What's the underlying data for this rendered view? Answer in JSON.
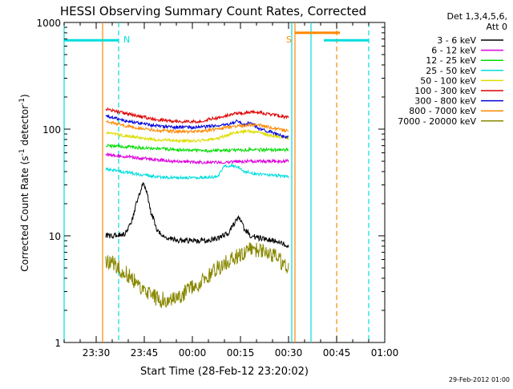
{
  "chart_data": {
    "type": "line",
    "title": "HESSI Observing Summary Count Rates, Corrected",
    "xlabel": "Start Time (28-Feb-12 23:20:02)",
    "ylabel_main": "Corrected Count Rate (s",
    "ylabel_sup1": "-1",
    "ylabel_mid": " detector",
    "ylabel_sup2": "-1",
    "ylabel_end": ")",
    "y_scale": "log",
    "ylim": [
      1,
      1000
    ],
    "xlim_minutes": [
      0,
      100
    ],
    "x_ticks": [
      {
        "t": 10,
        "label": "23:30"
      },
      {
        "t": 25,
        "label": "23:45"
      },
      {
        "t": 40,
        "label": "00:00"
      },
      {
        "t": 55,
        "label": "00:15"
      },
      {
        "t": 70,
        "label": "00:30"
      },
      {
        "t": 85,
        "label": "00:45"
      },
      {
        "t": 100,
        "label": "01:00"
      }
    ],
    "y_ticks": [
      {
        "v": 1,
        "label": "1"
      },
      {
        "v": 10,
        "label": "10"
      },
      {
        "v": 100,
        "label": "100"
      },
      {
        "v": 1000,
        "label": "1000"
      }
    ],
    "legend": {
      "header_line1": "Det 1,3,4,5,6,",
      "header_line2": "Att 0",
      "placement": "right"
    },
    "series": [
      {
        "name": "3 - 6 keV",
        "color": "#000000",
        "x": [
          13,
          16,
          19,
          21,
          23,
          24.5,
          25.5,
          27,
          29,
          32,
          36,
          40,
          44,
          48,
          51,
          53,
          54.5,
          56,
          58,
          61,
          65,
          68,
          70
        ],
        "values": [
          10,
          10,
          10.5,
          13,
          22,
          31,
          27,
          17,
          11,
          9.5,
          9,
          9,
          9,
          9.5,
          10.5,
          13,
          15,
          12,
          10,
          9.5,
          9,
          8.5,
          8
        ]
      },
      {
        "name": "6 - 12 keV",
        "color": "#dd00dd",
        "x": [
          13,
          20,
          28,
          35,
          42,
          50,
          56,
          62,
          70
        ],
        "values": [
          58,
          55,
          52,
          50,
          49,
          49,
          50,
          50,
          50
        ]
      },
      {
        "name": "12 - 25 keV",
        "color": "#00dd00",
        "x": [
          13,
          20,
          28,
          35,
          42,
          50,
          56,
          62,
          70
        ],
        "values": [
          70,
          68,
          66,
          64,
          63,
          63,
          64,
          64,
          64
        ]
      },
      {
        "name": "25 - 50 keV",
        "color": "#00dddd",
        "x": [
          13,
          20,
          28,
          35,
          42,
          48,
          50,
          52,
          54,
          56,
          60,
          64,
          70
        ],
        "values": [
          42,
          39,
          36,
          35,
          35,
          36,
          45,
          46,
          44,
          40,
          38,
          37,
          36
        ]
      },
      {
        "name": "50 - 100 keV",
        "color": "#dddd00",
        "x": [
          13,
          20,
          28,
          35,
          42,
          48,
          52,
          55,
          58,
          62,
          66,
          70
        ],
        "values": [
          92,
          86,
          80,
          78,
          78,
          82,
          90,
          95,
          96,
          90,
          86,
          82
        ]
      },
      {
        "name": "100 - 300 keV",
        "color": "#dd0000",
        "x": [
          13,
          20,
          28,
          35,
          42,
          48,
          52,
          56,
          60,
          64,
          70
        ],
        "values": [
          155,
          138,
          124,
          118,
          118,
          128,
          138,
          142,
          145,
          138,
          128
        ]
      },
      {
        "name": "300 - 800 keV",
        "color": "#0000dd",
        "x": [
          13,
          20,
          28,
          35,
          42,
          48,
          52,
          54,
          56,
          58,
          61,
          64,
          67,
          70
        ],
        "values": [
          132,
          118,
          108,
          104,
          104,
          108,
          112,
          120,
          110,
          115,
          100,
          95,
          88,
          84
        ]
      },
      {
        "name": "800 - 7000 keV",
        "color": "#ff8800",
        "x": [
          13,
          20,
          28,
          35,
          42,
          48,
          52,
          56,
          60,
          64,
          70
        ],
        "values": [
          118,
          106,
          98,
          95,
          95,
          100,
          105,
          108,
          110,
          104,
          96
        ]
      },
      {
        "name": "7000 - 20000 keV",
        "color": "#888800",
        "x": [
          13,
          17,
          21,
          25,
          30,
          34,
          38,
          42,
          46,
          50,
          54,
          57,
          60,
          64,
          67,
          70
        ],
        "values": [
          6,
          5,
          4,
          3,
          2.5,
          2.5,
          3,
          3.5,
          4.5,
          5.5,
          6.5,
          7.5,
          7.5,
          7,
          6,
          5
        ]
      }
    ],
    "annotations": [
      {
        "label": "N",
        "t": 17,
        "color": "#00dddd"
      },
      {
        "label": "S",
        "t": 72,
        "color": "#ff8800"
      }
    ],
    "night_periods": [
      {
        "label": "night",
        "start": -10,
        "end": 17,
        "color": "#00dddd"
      },
      {
        "label": "night",
        "start": 81,
        "end": 95,
        "color": "#00dddd"
      }
    ],
    "saa_period": {
      "start": 72,
      "end": 86,
      "color": "#ff8800"
    },
    "vertical_lines": [
      {
        "t": 0,
        "color": "#00dddd",
        "style": "solid"
      },
      {
        "t": 12,
        "color": "#ff8800",
        "style": "solid"
      },
      {
        "t": 17,
        "color": "#00dddd",
        "style": "dashed"
      },
      {
        "t": 71,
        "color": "#00dddd",
        "style": "solid"
      },
      {
        "t": 72,
        "color": "#ff8800",
        "style": "solid"
      },
      {
        "t": 77,
        "color": "#00dddd",
        "style": "solid"
      },
      {
        "t": 85,
        "color": "#ff8800",
        "style": "dashed"
      },
      {
        "t": 95,
        "color": "#00dddd",
        "style": "dashed"
      }
    ]
  },
  "footer_timestamp": "29-Feb-2012 01:00"
}
